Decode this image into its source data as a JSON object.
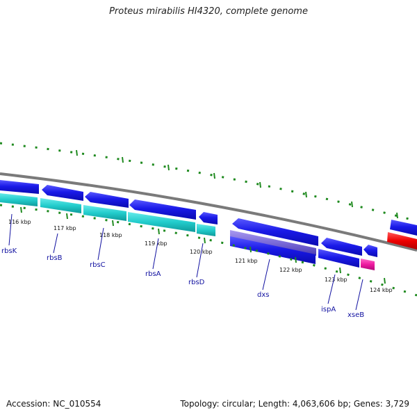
{
  "title": "Proteus mirabilis HI4320, complete genome",
  "footer": {
    "accession": "Accession: NC_010554",
    "summary": "Topology: circular; Length: 4,063,606 bp; Genes: 3,729"
  },
  "colors": {
    "backbone": "#7a7a7a",
    "cds": "#1414e6",
    "rna": "#22cccc",
    "purple": "#7a6ad8",
    "red": "#ee0000",
    "magenta": "#ee1aa0",
    "tick": "#1f8a1f",
    "label_line": "#1010a0"
  },
  "ticks": [
    {
      "label": "116 kbp"
    },
    {
      "label": "117 kbp"
    },
    {
      "label": "118 kbp"
    },
    {
      "label": "119 kbp"
    },
    {
      "label": "120 kbp"
    },
    {
      "label": "121 kbp"
    },
    {
      "label": "122 kbp"
    },
    {
      "label": "123 kbp"
    },
    {
      "label": "124 kbp"
    }
  ],
  "genes": [
    {
      "name": "rbsK"
    },
    {
      "name": "rbsB"
    },
    {
      "name": "rbsC"
    },
    {
      "name": "rbsA"
    },
    {
      "name": "rbsD"
    },
    {
      "name": "dxs"
    },
    {
      "name": "ispA"
    },
    {
      "name": "xseB"
    }
  ]
}
